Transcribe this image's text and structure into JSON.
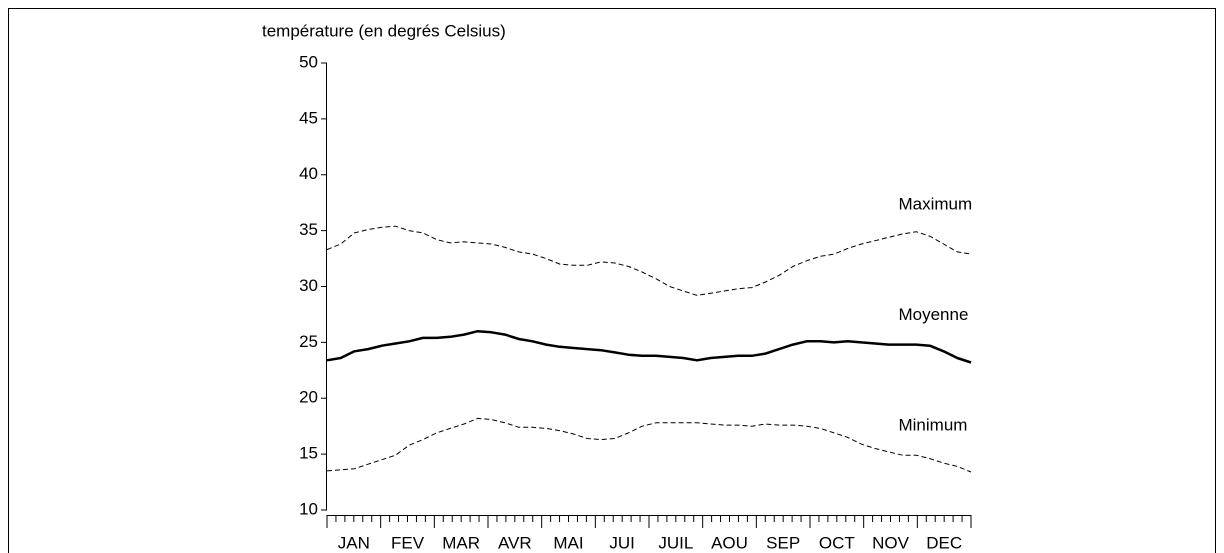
{
  "chart_data": {
    "type": "line",
    "y_label": "température  (en degrés  Celsius)",
    "categories": [
      null,
      null,
      "JAN",
      null,
      null,
      null,
      "FEV",
      null,
      null,
      null,
      "MAR",
      null,
      null,
      null,
      "AVR",
      null,
      null,
      null,
      "MAI",
      null,
      null,
      null,
      "JUI",
      null,
      null,
      null,
      "JUIL",
      null,
      null,
      null,
      "AOU",
      null,
      null,
      null,
      "SEP",
      null,
      null,
      null,
      "OCT",
      null,
      null,
      null,
      "NOV",
      null,
      null,
      null,
      "DEC",
      null
    ],
    "series": [
      {
        "name": "Maximum",
        "color": "#000000",
        "style": "dashed",
        "values": [
          33.3,
          33.8,
          34.8,
          35.1,
          35.3,
          35.4,
          35.0,
          34.8,
          34.2,
          33.9,
          34.0,
          33.9,
          33.8,
          33.5,
          33.1,
          32.9,
          32.5,
          32.0,
          31.9,
          31.9,
          32.2,
          32.1,
          31.8,
          31.3,
          30.7,
          30.0,
          29.6,
          29.2,
          29.4,
          29.6,
          29.8,
          29.9,
          30.4,
          31.0,
          31.8,
          32.3,
          32.7,
          32.9,
          33.4,
          33.8,
          34.1,
          34.4,
          34.7,
          34.9,
          34.5,
          33.8,
          33.1,
          32.9
        ]
      },
      {
        "name": "Moyenne",
        "color": "#000000",
        "style": "solid",
        "values": [
          23.4,
          23.6,
          24.2,
          24.4,
          24.7,
          24.9,
          25.1,
          25.4,
          25.4,
          25.5,
          25.7,
          26.0,
          25.9,
          25.7,
          25.3,
          25.1,
          24.8,
          24.6,
          24.5,
          24.4,
          24.3,
          24.1,
          23.9,
          23.8,
          23.8,
          23.7,
          23.6,
          23.4,
          23.6,
          23.7,
          23.8,
          23.8,
          24.0,
          24.4,
          24.8,
          25.1,
          25.1,
          25.0,
          25.1,
          25.0,
          24.9,
          24.8,
          24.8,
          24.8,
          24.7,
          24.2,
          23.6,
          23.2
        ]
      },
      {
        "name": "Minimum",
        "color": "#000000",
        "style": "dashed",
        "values": [
          13.5,
          13.6,
          13.7,
          14.1,
          14.5,
          14.9,
          15.8,
          16.3,
          16.9,
          17.3,
          17.7,
          18.2,
          18.1,
          17.8,
          17.4,
          17.4,
          17.3,
          17.1,
          16.8,
          16.4,
          16.3,
          16.4,
          16.9,
          17.5,
          17.8,
          17.8,
          17.8,
          17.8,
          17.7,
          17.6,
          17.6,
          17.5,
          17.7,
          17.6,
          17.6,
          17.5,
          17.3,
          16.9,
          16.5,
          15.9,
          15.5,
          15.2,
          14.9,
          14.9,
          14.6,
          14.2,
          13.9,
          13.4
        ]
      }
    ],
    "ylim": [
      10,
      50
    ],
    "yticks": [
      10,
      15,
      20,
      25,
      30,
      35,
      40,
      45,
      50
    ],
    "grid": false
  }
}
